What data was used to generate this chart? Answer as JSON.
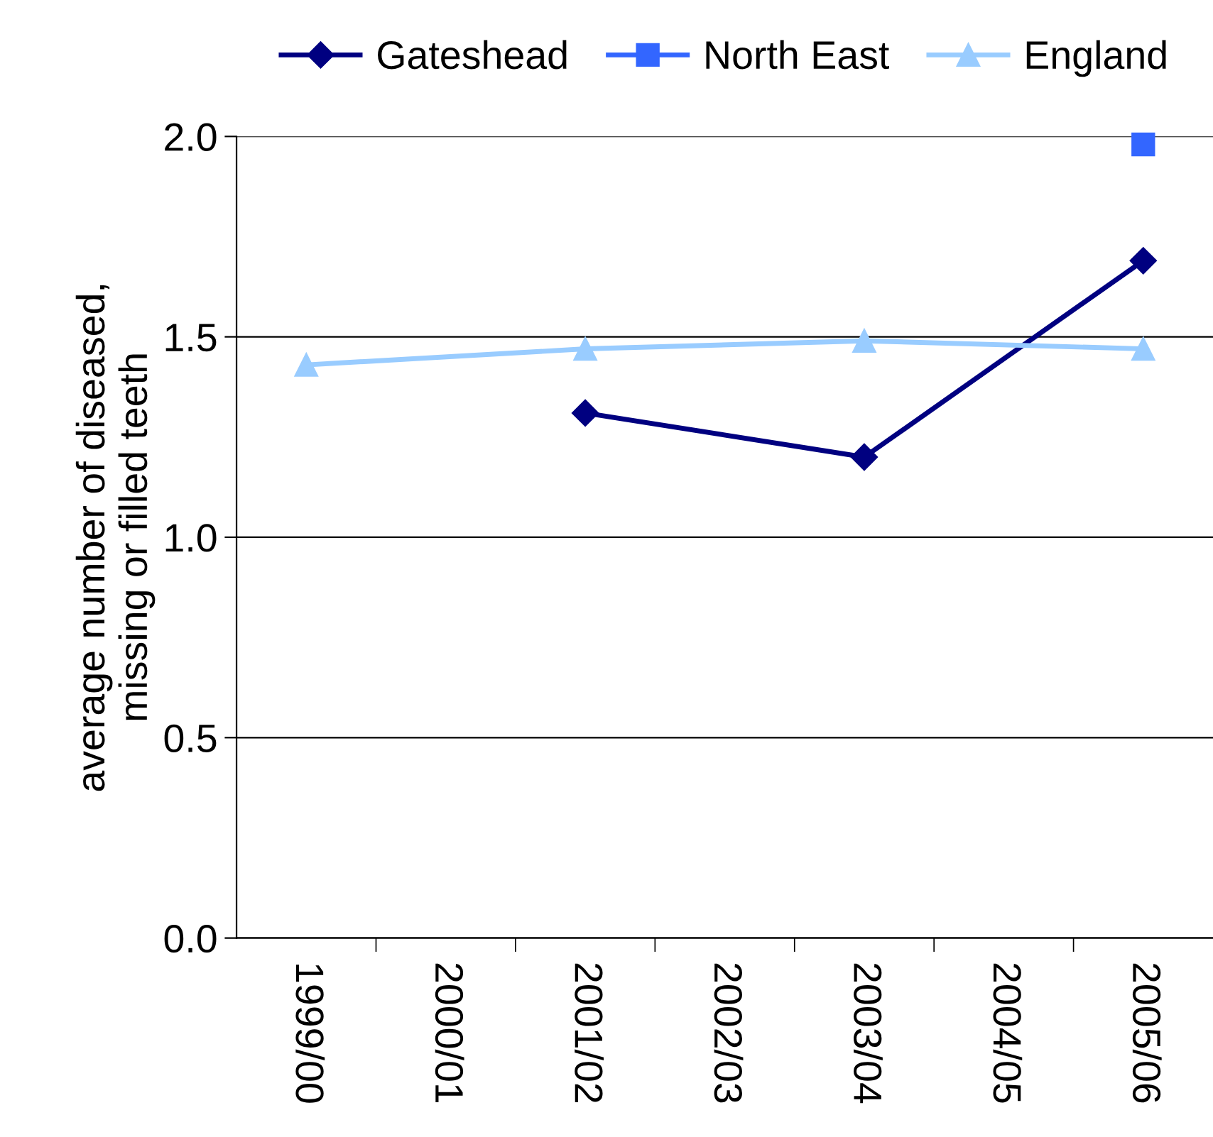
{
  "chart_data": {
    "type": "line",
    "ylabel": "average number of diseased,\nmissing or filled teeth",
    "categories": [
      "1999/00",
      "2000/01",
      "2001/02",
      "2002/03",
      "2003/04",
      "2004/05",
      "2005/06"
    ],
    "series": [
      {
        "name": "Gateshead",
        "color": "#000080",
        "marker": "diamond",
        "values": [
          null,
          null,
          1.31,
          null,
          1.2,
          null,
          1.69
        ]
      },
      {
        "name": "North East",
        "color": "#3366ff",
        "marker": "square",
        "values": [
          null,
          null,
          null,
          null,
          null,
          null,
          1.98
        ]
      },
      {
        "name": "England",
        "color": "#99ccff",
        "marker": "triangle",
        "values": [
          1.43,
          null,
          1.47,
          null,
          1.49,
          null,
          1.47
        ]
      }
    ],
    "ylim": [
      0,
      2
    ],
    "yticks": [
      {
        "value": 0,
        "label": "0.0"
      },
      {
        "value": 0.5,
        "label": "0.5"
      },
      {
        "value": 1,
        "label": "1.0"
      },
      {
        "value": 1.5,
        "label": "1.5"
      },
      {
        "value": 2,
        "label": "2.0"
      }
    ],
    "grid": "y",
    "legend": "top",
    "line_style": "solid"
  }
}
